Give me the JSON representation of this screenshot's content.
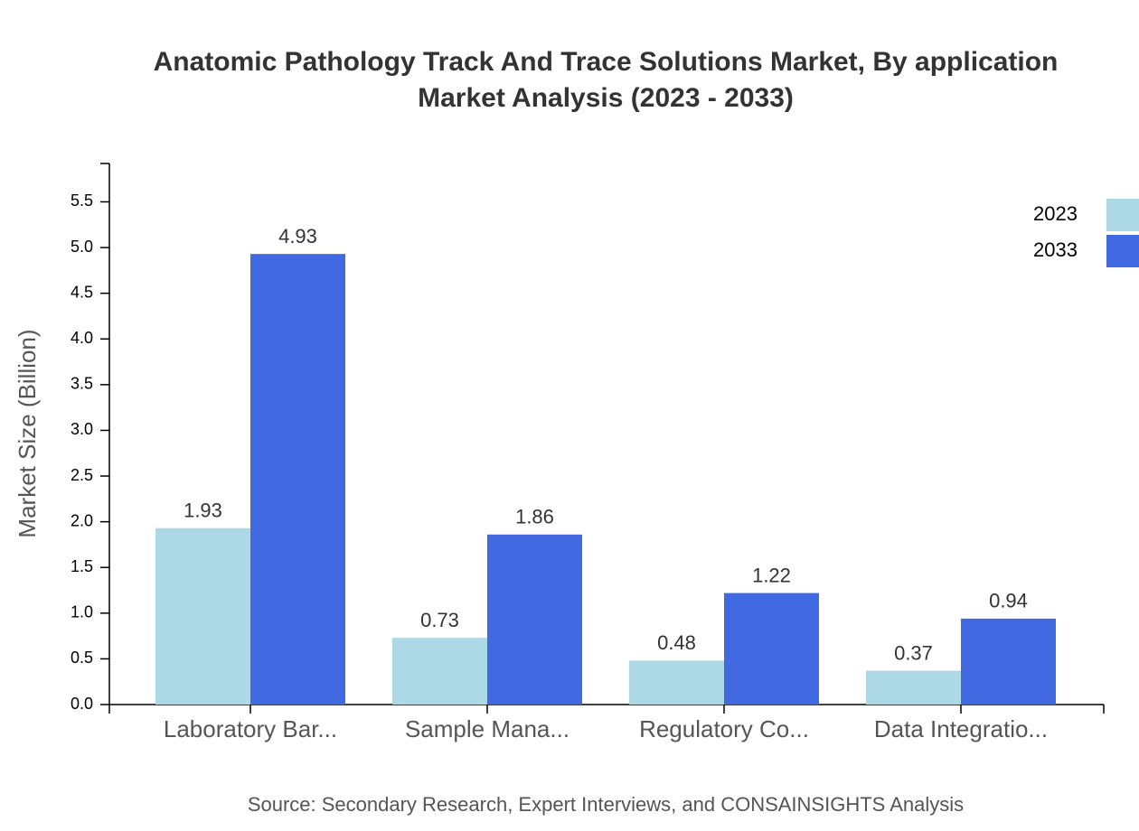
{
  "chart_data": {
    "type": "bar",
    "title": "Anatomic Pathology Track And Trace Solutions Market, By application",
    "subtitle": "Market Analysis (2023 - 2033)",
    "y_label": "Market Size (Billion)",
    "source": "Source: Secondary Research, Expert Interviews, and CONSAINSIGHTS Analysis",
    "categories": [
      "Laboratory Bar...",
      "Sample Mana...",
      "Regulatory Co...",
      "Data Integratio..."
    ],
    "series": [
      {
        "name": "2023",
        "color": "#add8e6",
        "values": [
          1.93,
          0.73,
          0.48,
          0.37
        ]
      },
      {
        "name": "2033",
        "color": "#4169e1",
        "values": [
          4.93,
          1.86,
          1.22,
          0.94
        ]
      }
    ],
    "ylim": [
      0,
      5.9
    ],
    "yticks": [
      {
        "value": 0,
        "label": "0.0"
      },
      0.5,
      {
        "value": 1,
        "label": "1.0"
      },
      1.5,
      {
        "value": 2,
        "label": "2.0"
      },
      2.5,
      {
        "value": 3,
        "label": "3.0"
      },
      3.5,
      {
        "value": 4,
        "label": "4.0"
      },
      4.5,
      {
        "value": 5,
        "label": "5.0"
      },
      5.5
    ],
    "legend": "top-right"
  }
}
